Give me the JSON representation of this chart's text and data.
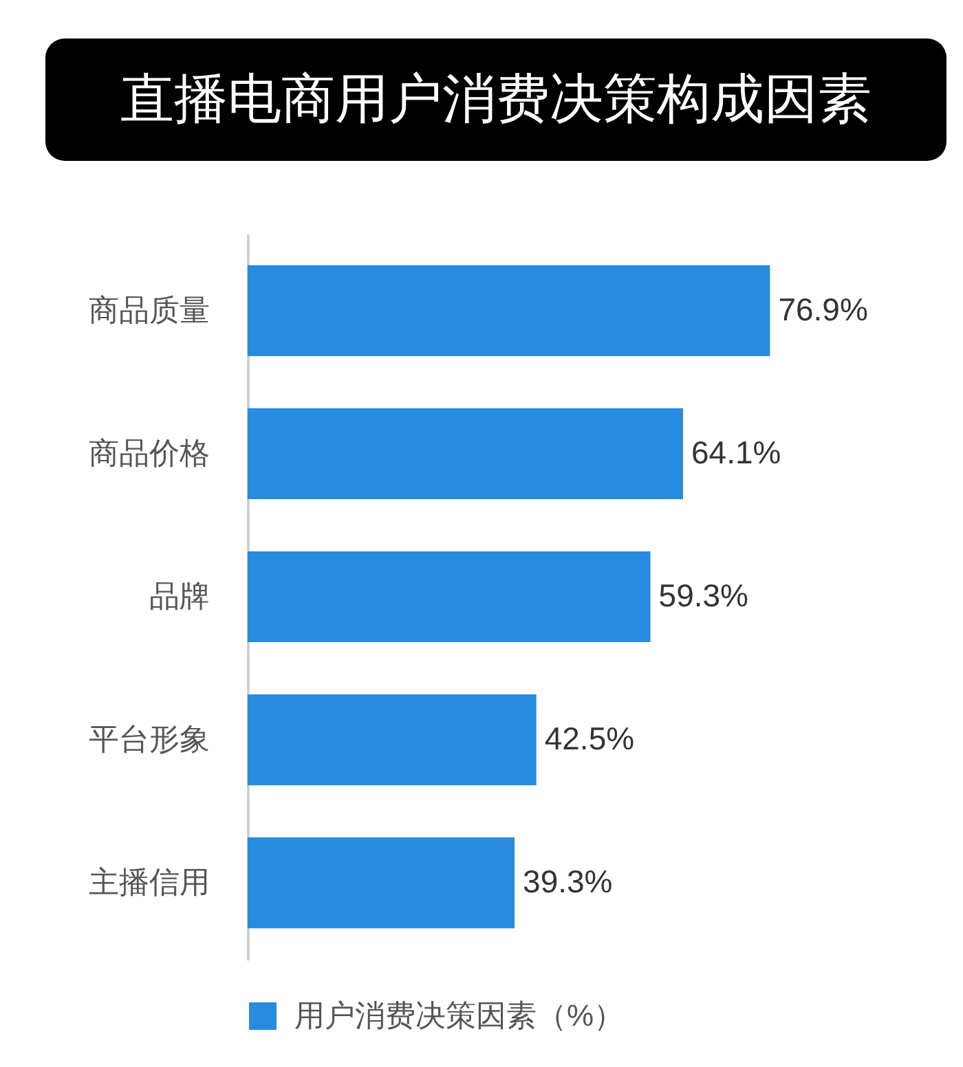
{
  "chart_data": {
    "type": "bar",
    "title": "直播电商用户消费决策构成因素",
    "orientation": "horizontal",
    "categories": [
      "商品质量",
      "商品价格",
      "品牌",
      "平台形象",
      "主播信用"
    ],
    "series": [
      {
        "name": "用户消费决策因素（%）",
        "color": "#278be0",
        "values": [
          76.9,
          64.1,
          59.3,
          42.5,
          39.3
        ],
        "value_labels": [
          "76.9%",
          "64.1%",
          "59.3%",
          "42.5%",
          "39.3%"
        ]
      }
    ],
    "tick_labels": "y",
    "legend": "bottom"
  }
}
